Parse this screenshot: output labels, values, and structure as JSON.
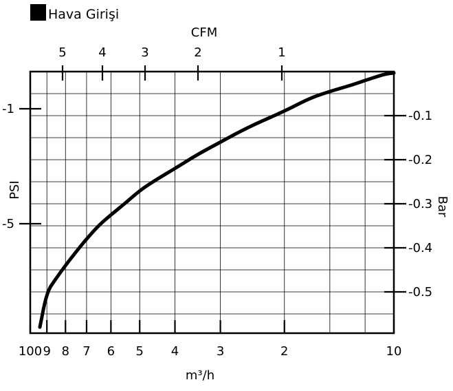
{
  "chart_data": {
    "type": "line",
    "title": "Hava Girişi",
    "legend": {
      "label": "Hava Girişi",
      "color": "#000000",
      "placement": "top-left"
    },
    "top_axis": {
      "label": "CFM",
      "ticks": [
        "5",
        "4",
        "3",
        "2",
        "1"
      ]
    },
    "bottom_axis": {
      "label": "m³/h",
      "ticks": [
        "100",
        "9",
        "8",
        "7",
        "6",
        "5",
        "4",
        "3",
        "2",
        "10"
      ]
    },
    "left_axis": {
      "label": "PSI",
      "ticks": [
        "-1",
        "-5"
      ]
    },
    "right_axis": {
      "label": "Bar",
      "ticks": [
        "-0.1",
        "-0.2",
        "-0.3",
        "-0.4",
        "-0.5"
      ]
    },
    "grid": true,
    "series": [
      {
        "x_m3h": [
          100,
          90,
          85,
          80,
          75,
          70,
          65,
          60,
          55,
          50,
          45,
          40,
          35,
          30,
          25,
          20,
          17,
          15,
          13,
          12,
          11,
          10.5,
          10
        ],
        "y_bar": [
          -0.58,
          -0.5,
          -0.47,
          -0.44,
          -0.41,
          -0.38,
          -0.35,
          -0.325,
          -0.3,
          -0.27,
          -0.245,
          -0.22,
          -0.19,
          -0.16,
          -0.125,
          -0.09,
          -0.06,
          -0.045,
          -0.03,
          -0.02,
          -0.01,
          -0.005,
          -0.003
        ]
      }
    ]
  }
}
